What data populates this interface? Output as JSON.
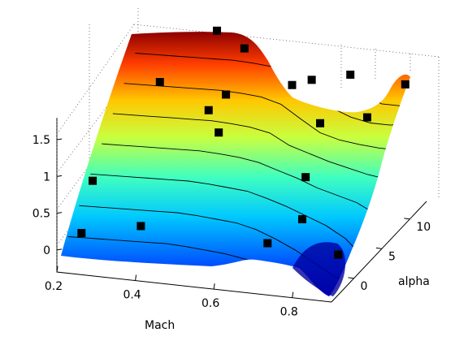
{
  "chart_data": {
    "type": "surface",
    "colormap": "jet",
    "grid": true,
    "xlabel": "Mach",
    "ylabel": "alpha",
    "zlabel": "",
    "xlim": [
      0.2,
      0.9
    ],
    "ylim": [
      -4,
      13
    ],
    "zlim": [
      -0.3,
      1.8
    ],
    "x_ticks": [
      "0.2",
      "0.4",
      "0.6",
      "0.8"
    ],
    "y_ticks": [
      "0",
      "5",
      "10"
    ],
    "z_ticks": [
      "0",
      "0.5",
      "1",
      "1.5"
    ],
    "surface_rows": [
      {
        "alpha": 12,
        "cl": [
          1.78,
          1.78,
          1.78,
          1.79,
          1.8,
          1.81,
          1.8,
          1.78,
          1.7,
          1.45,
          1.25,
          1.15,
          1.05,
          1.05,
          1.1,
          1.3
        ]
      },
      {
        "alpha": 10,
        "cl": [
          1.55,
          1.56,
          1.57,
          1.58,
          1.59,
          1.6,
          1.59,
          1.57,
          1.5,
          1.3,
          1.1,
          1.0,
          0.95,
          0.95,
          0.98,
          1.0
        ]
      },
      {
        "alpha": 8,
        "cl": [
          1.3,
          1.31,
          1.32,
          1.33,
          1.34,
          1.35,
          1.34,
          1.32,
          1.25,
          1.08,
          0.92,
          0.85,
          0.82,
          0.8,
          0.8,
          0.8
        ]
      },
      {
        "alpha": 6,
        "cl": [
          1.05,
          1.06,
          1.07,
          1.08,
          1.09,
          1.1,
          1.09,
          1.07,
          1.02,
          0.88,
          0.8,
          0.72,
          0.66,
          0.6,
          0.58,
          0.55
        ]
      },
      {
        "alpha": 4,
        "cl": [
          0.8,
          0.81,
          0.82,
          0.83,
          0.84,
          0.85,
          0.84,
          0.82,
          0.78,
          0.7,
          0.62,
          0.52,
          0.45,
          0.38,
          0.3,
          0.25
        ]
      },
      {
        "alpha": 2,
        "cl": [
          0.55,
          0.56,
          0.57,
          0.58,
          0.59,
          0.6,
          0.59,
          0.57,
          0.55,
          0.48,
          0.4,
          0.3,
          0.2,
          0.05,
          -0.1,
          -0.1
        ]
      },
      {
        "alpha": 0,
        "cl": [
          0.28,
          0.29,
          0.3,
          0.31,
          0.32,
          0.33,
          0.32,
          0.3,
          0.28,
          0.22,
          0.12,
          0.0,
          -0.15,
          -0.3,
          -0.35,
          -0.2
        ]
      },
      {
        "alpha": -2,
        "cl": [
          0.02,
          0.03,
          0.04,
          0.05,
          0.06,
          0.07,
          0.06,
          0.04,
          0.02,
          -0.02,
          -0.08,
          -0.18,
          -0.3,
          -0.45,
          -0.5,
          -0.3
        ]
      },
      {
        "alpha": -4,
        "cl": [
          -0.22,
          -0.21,
          -0.2,
          -0.19,
          -0.18,
          -0.17,
          -0.18,
          -0.2,
          -0.22,
          -0.25,
          -0.3,
          -0.38,
          -0.5,
          -0.62,
          -0.65,
          -0.45
        ]
      }
    ],
    "mach_columns": [
      0.2,
      0.25,
      0.3,
      0.35,
      0.4,
      0.45,
      0.5,
      0.55,
      0.6,
      0.65,
      0.7,
      0.75,
      0.8,
      0.85,
      0.88,
      0.9
    ],
    "markers": [
      {
        "mach": 0.22,
        "alpha": -1,
        "cl": 0.0
      },
      {
        "mach": 0.22,
        "alpha": 1,
        "cl": 0.55
      },
      {
        "mach": 0.35,
        "alpha": 0.5,
        "cl": 0.05
      },
      {
        "mach": 0.32,
        "alpha": 6,
        "cl": 1.55
      },
      {
        "mach": 0.43,
        "alpha": 7,
        "cl": 1.15
      },
      {
        "mach": 0.46,
        "alpha": 8,
        "cl": 1.3
      },
      {
        "mach": 0.47,
        "alpha": 6,
        "cl": 0.95
      },
      {
        "mach": 0.38,
        "alpha": 12,
        "cl": 1.8
      },
      {
        "mach": 0.45,
        "alpha": 12,
        "cl": 1.6
      },
      {
        "mach": 0.6,
        "alpha": 10,
        "cl": 1.35
      },
      {
        "mach": 0.65,
        "alpha": 10,
        "cl": 1.45
      },
      {
        "mach": 0.72,
        "alpha": 12,
        "cl": 1.4
      },
      {
        "mach": 0.7,
        "alpha": 8,
        "cl": 1.05
      },
      {
        "mach": 0.72,
        "alpha": 4,
        "cl": 0.65
      },
      {
        "mach": 0.74,
        "alpha": 2,
        "cl": 0.25
      },
      {
        "mach": 0.68,
        "alpha": 0,
        "cl": 0.05
      },
      {
        "mach": 0.82,
        "alpha": 8,
        "cl": 1.2
      },
      {
        "mach": 0.86,
        "alpha": 12,
        "cl": 1.35
      },
      {
        "mach": 0.86,
        "alpha": 0,
        "cl": 0.0
      }
    ]
  }
}
